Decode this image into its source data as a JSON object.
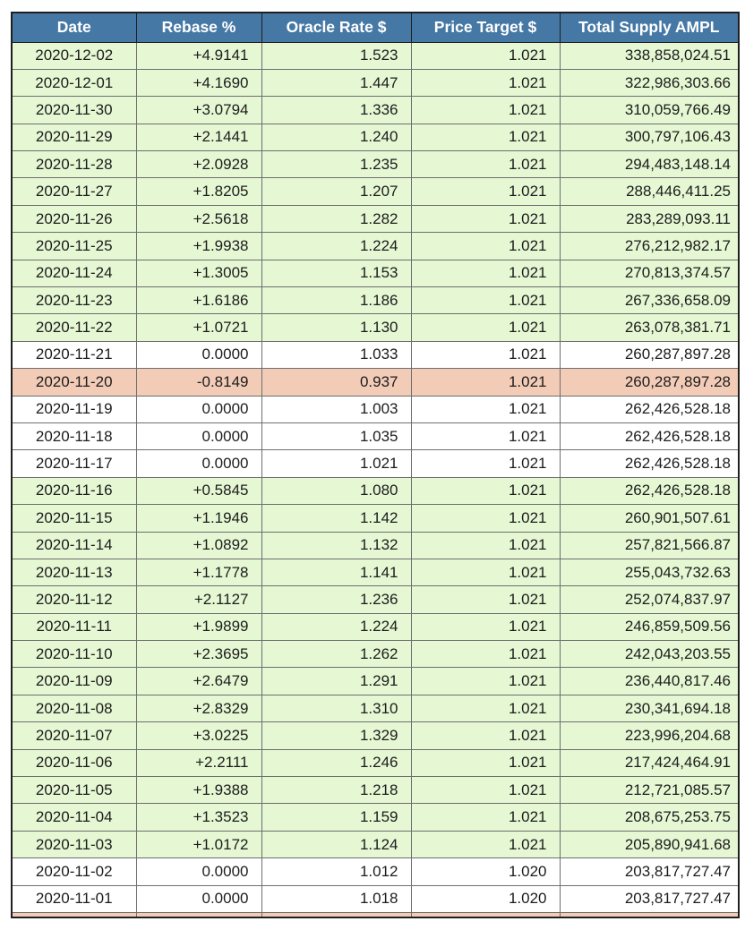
{
  "colors": {
    "header_bg": "#4678a6",
    "header_text": "#ffffff",
    "positive_row_bg": "#e5f7d3",
    "zero_row_bg": "#ffffff",
    "negative_row_bg": "#f3ccb8",
    "outer_border": "#1f1f1f",
    "inner_border": "#6e6e6e",
    "text": "#1c1c1c"
  },
  "chart_data": {
    "type": "table",
    "columns": [
      "Date",
      "Rebase %",
      "Oracle Rate $",
      "Price Target $",
      "Total Supply AMPL"
    ],
    "row_color_rule": "positive rebase = light green, zero rebase = white, negative rebase = salmon",
    "bottom_partial_row_visible": true,
    "rows": [
      {
        "date": "2020-12-02",
        "rebase_pct": "+4.9141",
        "oracle_rate": "1.523",
        "price_target": "1.021",
        "total_supply": "338,858,024.51"
      },
      {
        "date": "2020-12-01",
        "rebase_pct": "+4.1690",
        "oracle_rate": "1.447",
        "price_target": "1.021",
        "total_supply": "322,986,303.66"
      },
      {
        "date": "2020-11-30",
        "rebase_pct": "+3.0794",
        "oracle_rate": "1.336",
        "price_target": "1.021",
        "total_supply": "310,059,766.49"
      },
      {
        "date": "2020-11-29",
        "rebase_pct": "+2.1441",
        "oracle_rate": "1.240",
        "price_target": "1.021",
        "total_supply": "300,797,106.43"
      },
      {
        "date": "2020-11-28",
        "rebase_pct": "+2.0928",
        "oracle_rate": "1.235",
        "price_target": "1.021",
        "total_supply": "294,483,148.14"
      },
      {
        "date": "2020-11-27",
        "rebase_pct": "+1.8205",
        "oracle_rate": "1.207",
        "price_target": "1.021",
        "total_supply": "288,446,411.25"
      },
      {
        "date": "2020-11-26",
        "rebase_pct": "+2.5618",
        "oracle_rate": "1.282",
        "price_target": "1.021",
        "total_supply": "283,289,093.11"
      },
      {
        "date": "2020-11-25",
        "rebase_pct": "+1.9938",
        "oracle_rate": "1.224",
        "price_target": "1.021",
        "total_supply": "276,212,982.17"
      },
      {
        "date": "2020-11-24",
        "rebase_pct": "+1.3005",
        "oracle_rate": "1.153",
        "price_target": "1.021",
        "total_supply": "270,813,374.57"
      },
      {
        "date": "2020-11-23",
        "rebase_pct": "+1.6186",
        "oracle_rate": "1.186",
        "price_target": "1.021",
        "total_supply": "267,336,658.09"
      },
      {
        "date": "2020-11-22",
        "rebase_pct": "+1.0721",
        "oracle_rate": "1.130",
        "price_target": "1.021",
        "total_supply": "263,078,381.71"
      },
      {
        "date": "2020-11-21",
        "rebase_pct": "0.0000",
        "oracle_rate": "1.033",
        "price_target": "1.021",
        "total_supply": "260,287,897.28"
      },
      {
        "date": "2020-11-20",
        "rebase_pct": "-0.8149",
        "oracle_rate": "0.937",
        "price_target": "1.021",
        "total_supply": "260,287,897.28"
      },
      {
        "date": "2020-11-19",
        "rebase_pct": "0.0000",
        "oracle_rate": "1.003",
        "price_target": "1.021",
        "total_supply": "262,426,528.18"
      },
      {
        "date": "2020-11-18",
        "rebase_pct": "0.0000",
        "oracle_rate": "1.035",
        "price_target": "1.021",
        "total_supply": "262,426,528.18"
      },
      {
        "date": "2020-11-17",
        "rebase_pct": "0.0000",
        "oracle_rate": "1.021",
        "price_target": "1.021",
        "total_supply": "262,426,528.18"
      },
      {
        "date": "2020-11-16",
        "rebase_pct": "+0.5845",
        "oracle_rate": "1.080",
        "price_target": "1.021",
        "total_supply": "262,426,528.18"
      },
      {
        "date": "2020-11-15",
        "rebase_pct": "+1.1946",
        "oracle_rate": "1.142",
        "price_target": "1.021",
        "total_supply": "260,901,507.61"
      },
      {
        "date": "2020-11-14",
        "rebase_pct": "+1.0892",
        "oracle_rate": "1.132",
        "price_target": "1.021",
        "total_supply": "257,821,566.87"
      },
      {
        "date": "2020-11-13",
        "rebase_pct": "+1.1778",
        "oracle_rate": "1.141",
        "price_target": "1.021",
        "total_supply": "255,043,732.63"
      },
      {
        "date": "2020-11-12",
        "rebase_pct": "+2.1127",
        "oracle_rate": "1.236",
        "price_target": "1.021",
        "total_supply": "252,074,837.97"
      },
      {
        "date": "2020-11-11",
        "rebase_pct": "+1.9899",
        "oracle_rate": "1.224",
        "price_target": "1.021",
        "total_supply": "246,859,509.56"
      },
      {
        "date": "2020-11-10",
        "rebase_pct": "+2.3695",
        "oracle_rate": "1.262",
        "price_target": "1.021",
        "total_supply": "242,043,203.55"
      },
      {
        "date": "2020-11-09",
        "rebase_pct": "+2.6479",
        "oracle_rate": "1.291",
        "price_target": "1.021",
        "total_supply": "236,440,817.46"
      },
      {
        "date": "2020-11-08",
        "rebase_pct": "+2.8329",
        "oracle_rate": "1.310",
        "price_target": "1.021",
        "total_supply": "230,341,694.18"
      },
      {
        "date": "2020-11-07",
        "rebase_pct": "+3.0225",
        "oracle_rate": "1.329",
        "price_target": "1.021",
        "total_supply": "223,996,204.68"
      },
      {
        "date": "2020-11-06",
        "rebase_pct": "+2.2111",
        "oracle_rate": "1.246",
        "price_target": "1.021",
        "total_supply": "217,424,464.91"
      },
      {
        "date": "2020-11-05",
        "rebase_pct": "+1.9388",
        "oracle_rate": "1.218",
        "price_target": "1.021",
        "total_supply": "212,721,085.57"
      },
      {
        "date": "2020-11-04",
        "rebase_pct": "+1.3523",
        "oracle_rate": "1.159",
        "price_target": "1.021",
        "total_supply": "208,675,253.75"
      },
      {
        "date": "2020-11-03",
        "rebase_pct": "+1.0172",
        "oracle_rate": "1.124",
        "price_target": "1.021",
        "total_supply": "205,890,941.68"
      },
      {
        "date": "2020-11-02",
        "rebase_pct": "0.0000",
        "oracle_rate": "1.012",
        "price_target": "1.020",
        "total_supply": "203,817,727.47"
      },
      {
        "date": "2020-11-01",
        "rebase_pct": "0.0000",
        "oracle_rate": "1.018",
        "price_target": "1.020",
        "total_supply": "203,817,727.47"
      }
    ]
  }
}
